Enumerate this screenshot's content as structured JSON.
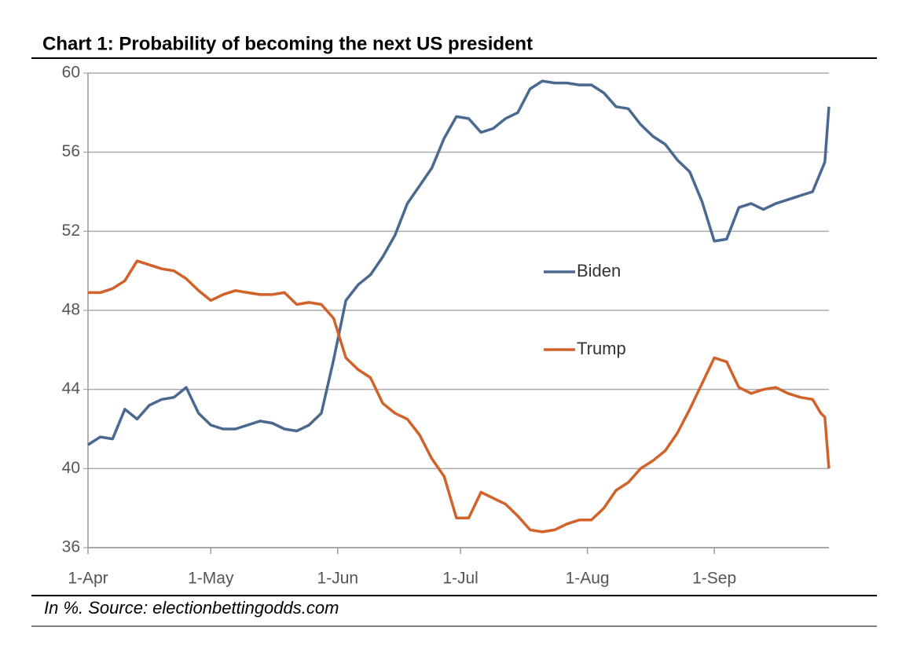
{
  "chart_data": {
    "type": "line",
    "title": "Chart 1: Probability of becoming the next US president",
    "note": "In %. Source: electionbettingodds.com",
    "x": [
      0,
      3,
      6,
      9,
      12,
      15,
      18,
      21,
      24,
      27,
      30,
      33,
      36,
      39,
      42,
      45,
      48,
      51,
      54,
      57,
      60,
      63,
      66,
      69,
      72,
      75,
      78,
      81,
      84,
      87,
      90,
      93,
      96,
      99,
      102,
      105,
      108,
      111,
      114,
      117,
      120,
      123,
      126,
      129,
      132,
      135,
      138,
      141,
      144,
      147,
      150,
      153,
      156,
      159,
      162,
      165,
      168,
      171,
      174,
      177,
      179,
      180,
      181
    ],
    "xlim": [
      0,
      181
    ],
    "xticks": [
      {
        "value": 0,
        "label": "1-Apr"
      },
      {
        "value": 30,
        "label": "1-May"
      },
      {
        "value": 61,
        "label": "1-Jun"
      },
      {
        "value": 91,
        "label": "1-Jul"
      },
      {
        "value": 122,
        "label": "1-Aug"
      },
      {
        "value": 153,
        "label": "1-Sep"
      }
    ],
    "ylim": [
      36,
      60
    ],
    "yticks": [
      36,
      40,
      44,
      48,
      52,
      56,
      60
    ],
    "grid": true,
    "series": [
      {
        "name": "Biden",
        "color": "#4a6890",
        "values": [
          41.2,
          41.6,
          41.5,
          43.0,
          42.5,
          43.2,
          43.5,
          43.6,
          44.1,
          42.8,
          42.2,
          42.0,
          42.0,
          42.2,
          42.4,
          42.3,
          42.0,
          41.9,
          42.2,
          42.8,
          45.5,
          48.5,
          49.3,
          49.8,
          50.7,
          51.8,
          53.4,
          54.3,
          55.2,
          56.7,
          57.8,
          57.7,
          57.0,
          57.2,
          57.7,
          58.0,
          59.2,
          59.6,
          59.5,
          59.5,
          59.4,
          59.4,
          59.0,
          58.3,
          58.2,
          57.4,
          56.8,
          56.4,
          55.6,
          55.0,
          53.5,
          51.5,
          51.6,
          53.2,
          53.4,
          53.1,
          53.4,
          53.6,
          53.8,
          54.0,
          55.0,
          55.5,
          58.3
        ]
      },
      {
        "name": "Trump",
        "color": "#d0622a",
        "values": [
          48.9,
          48.9,
          49.1,
          49.5,
          50.5,
          50.3,
          50.1,
          50.0,
          49.6,
          49.0,
          48.5,
          48.8,
          49.0,
          48.9,
          48.8,
          48.8,
          48.9,
          48.3,
          48.4,
          48.3,
          47.6,
          45.6,
          45.0,
          44.6,
          43.3,
          42.8,
          42.5,
          41.7,
          40.5,
          39.6,
          37.5,
          37.5,
          38.8,
          38.5,
          38.2,
          37.6,
          36.9,
          36.8,
          36.9,
          37.2,
          37.4,
          37.4,
          38.0,
          38.9,
          39.3,
          40.0,
          40.4,
          40.9,
          41.8,
          43.0,
          44.3,
          45.6,
          45.4,
          44.1,
          43.8,
          44.0,
          44.1,
          43.8,
          43.6,
          43.5,
          42.8,
          42.6,
          40.0
        ]
      }
    ]
  }
}
